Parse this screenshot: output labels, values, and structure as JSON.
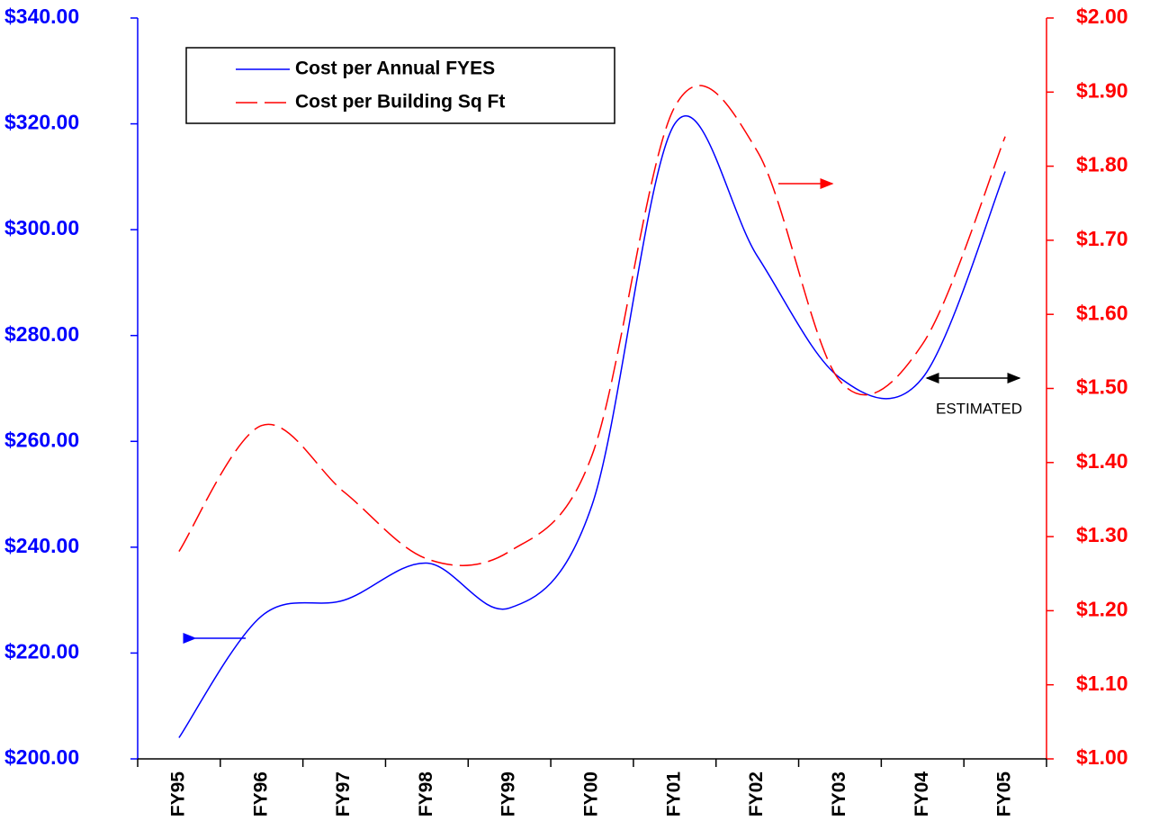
{
  "chart_data": {
    "type": "line",
    "categories": [
      "FY95",
      "FY96",
      "FY97",
      "FY98",
      "FY99",
      "FY00",
      "FY01",
      "FY02",
      "FY03",
      "FY04",
      "FY05"
    ],
    "series": [
      {
        "name": "Cost per Annual FYES",
        "color": "#0000ff",
        "dash": "solid",
        "values": [
          204,
          227,
          230,
          237,
          228.5,
          248,
          320,
          295,
          272,
          272,
          311
        ]
      },
      {
        "name": "Cost per Building Sq Ft",
        "color": "#ff0000",
        "dash": "dashed",
        "axis": "y2",
        "values": [
          1.28,
          1.45,
          1.36,
          1.27,
          1.28,
          1.41,
          1.88,
          1.82,
          1.51,
          1.56,
          1.84
        ]
      }
    ],
    "ylim": [
      200,
      340
    ],
    "yticks": [
      {
        "value": 200,
        "label": "$200.00"
      },
      {
        "value": 220,
        "label": "$220.00"
      },
      {
        "value": 240,
        "label": "$240.00"
      },
      {
        "value": 260,
        "label": "$260.00"
      },
      {
        "value": 280,
        "label": "$280.00"
      },
      {
        "value": 300,
        "label": "$300.00"
      },
      {
        "value": 320,
        "label": "$320.00"
      },
      {
        "value": 340,
        "label": "$340.00"
      }
    ],
    "y2lim": [
      1.0,
      2.0
    ],
    "y2ticks": [
      {
        "value": 1.0,
        "label": "$1.00"
      },
      {
        "value": 1.1,
        "label": "$1.10"
      },
      {
        "value": 1.2,
        "label": "$1.20"
      },
      {
        "value": 1.3,
        "label": "$1.30"
      },
      {
        "value": 1.4,
        "label": "$1.40"
      },
      {
        "value": 1.5,
        "label": "$1.50"
      },
      {
        "value": 1.6,
        "label": "$1.60"
      },
      {
        "value": 1.7,
        "label": "$1.70"
      },
      {
        "value": 1.8,
        "label": "$1.80"
      },
      {
        "value": 1.9,
        "label": "$1.90"
      },
      {
        "value": 2.0,
        "label": "$2.00"
      }
    ],
    "annotation": "ESTIMATED",
    "smooth": true,
    "legend": "upper left"
  }
}
